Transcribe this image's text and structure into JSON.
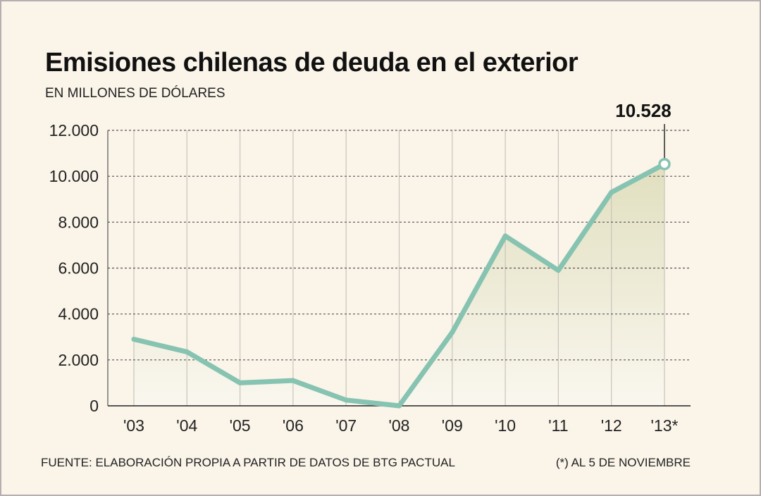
{
  "header": {
    "title": "Emisiones chilenas de deuda en el exterior",
    "subtitle": "EN MILLONES DE DÓLARES"
  },
  "footer": {
    "source": "FUENTE: ELABORACIÓN PROPIA A PARTIR DE DATOS DE BTG PACTUAL",
    "note": "(*) AL 5 DE NOVIEMBRE"
  },
  "colors": {
    "background": "#faf4e9",
    "line": "#86c3b1",
    "area_top": "#e6e4c8",
    "grid": "#555555"
  },
  "chart_data": {
    "type": "line",
    "categories": [
      "'03",
      "'04",
      "'05",
      "'06",
      "'07",
      "'08",
      "'09",
      "'10",
      "'11",
      "'12",
      "'13*"
    ],
    "series": [
      {
        "values": [
          2900,
          2350,
          1000,
          1100,
          250,
          0,
          3200,
          7400,
          5900,
          9300,
          10528
        ]
      }
    ],
    "ylim": [
      0,
      12000
    ],
    "yticks": [
      0,
      2000,
      4000,
      6000,
      8000,
      10000,
      12000
    ],
    "ytick_labels": [
      "0",
      "2.000",
      "4.000",
      "6.000",
      "8.000",
      "10.000",
      "12.000"
    ],
    "annotation": {
      "category": "'13*",
      "label": "10.528"
    },
    "grid": true,
    "fill_under_line": true,
    "legend": "none"
  }
}
